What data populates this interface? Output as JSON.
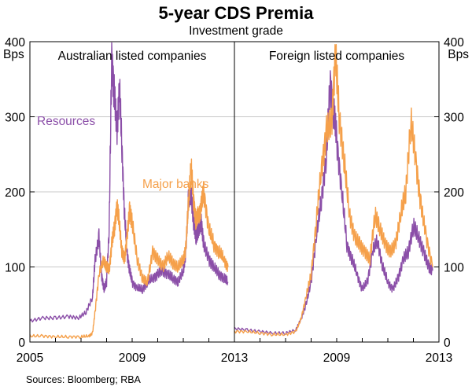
{
  "chart_data": {
    "type": "line",
    "title": "5-year CDS Premia",
    "subtitle": "Investment grade",
    "ylabel_left": "Bps",
    "ylabel_right": "Bps",
    "ylim": [
      0,
      400
    ],
    "yticks": [
      0,
      100,
      200,
      300,
      400
    ],
    "source": "Sources: Bloomberg; RBA",
    "colors": {
      "resources": "#8b4fa8",
      "major_banks": "#f5a04a",
      "grid": "#c8c8c8",
      "axis": "#000000"
    },
    "panels": [
      {
        "title": "Australian listed companies",
        "xlim": [
          2005,
          2013
        ],
        "xticks": [
          2005,
          2009,
          2013
        ],
        "series": [
          {
            "name": "Resources",
            "color": "#8b4fa8",
            "x": [
              2005.0,
              2005.5,
              2006.0,
              2006.5,
              2006.9,
              2007.2,
              2007.45,
              2007.55,
              2007.7,
              2007.8,
              2007.9,
              2008.0,
              2008.1,
              2008.2,
              2008.3,
              2008.4,
              2008.5,
              2008.6,
              2008.7,
              2008.8,
              2008.9,
              2009.0,
              2009.2,
              2009.4,
              2009.6,
              2009.8,
              2010.0,
              2010.2,
              2010.4,
              2010.6,
              2010.8,
              2011.0,
              2011.1,
              2011.2,
              2011.3,
              2011.4,
              2011.5,
              2011.6,
              2011.7,
              2011.8,
              2012.0,
              2012.2,
              2012.4,
              2012.6,
              2012.75
            ],
            "y": [
              28,
              32,
              32,
              34,
              32,
              40,
              60,
              110,
              140,
              90,
              70,
              80,
              150,
              380,
              330,
              280,
              340,
              260,
              170,
              120,
              95,
              80,
              72,
              70,
              80,
              85,
              90,
              95,
              90,
              85,
              80,
              95,
              120,
              190,
              200,
              160,
              140,
              150,
              160,
              130,
              110,
              100,
              90,
              85,
              80
            ]
          },
          {
            "name": "Major banks",
            "color": "#f5a04a",
            "x": [
              2005.0,
              2005.5,
              2006.0,
              2006.5,
              2007.0,
              2007.3,
              2007.45,
              2007.55,
              2007.7,
              2007.9,
              2008.0,
              2008.1,
              2008.2,
              2008.3,
              2008.4,
              2008.5,
              2008.6,
              2008.7,
              2008.8,
              2008.9,
              2009.0,
              2009.2,
              2009.4,
              2009.6,
              2009.8,
              2010.0,
              2010.2,
              2010.4,
              2010.6,
              2010.8,
              2011.0,
              2011.1,
              2011.2,
              2011.3,
              2011.4,
              2011.5,
              2011.6,
              2011.7,
              2011.8,
              2012.0,
              2012.2,
              2012.4,
              2012.6,
              2012.75
            ],
            "y": [
              8,
              8,
              7,
              7,
              7,
              8,
              12,
              40,
              90,
              110,
              100,
              95,
              130,
              150,
              180,
              160,
              120,
              110,
              140,
              175,
              160,
              110,
              85,
              80,
              120,
              110,
              100,
              115,
              105,
              100,
              110,
              125,
              185,
              235,
              190,
              160,
              170,
              180,
              200,
              150,
              130,
              120,
              110,
              100
            ]
          }
        ],
        "annotations": [
          "Resources",
          "Major banks"
        ]
      },
      {
        "title": "Foreign listed companies",
        "xlim": [
          2005,
          2013
        ],
        "xticks": [
          2009,
          2013
        ],
        "series": [
          {
            "name": "Resources",
            "color": "#8b4fa8",
            "x": [
              2005.0,
              2005.5,
              2006.0,
              2006.5,
              2007.0,
              2007.4,
              2007.6,
              2007.8,
              2008.0,
              2008.2,
              2008.4,
              2008.6,
              2008.75,
              2008.9,
              2009.0,
              2009.2,
              2009.4,
              2009.6,
              2009.8,
              2010.0,
              2010.2,
              2010.4,
              2010.6,
              2010.8,
              2011.0,
              2011.2,
              2011.4,
              2011.6,
              2011.8,
              2012.0,
              2012.2,
              2012.4,
              2012.6,
              2012.75
            ],
            "y": [
              18,
              16,
              14,
              12,
              12,
              16,
              30,
              50,
              80,
              140,
              190,
              250,
              345,
              300,
              270,
              200,
              130,
              110,
              90,
              70,
              80,
              120,
              135,
              100,
              80,
              70,
              85,
              110,
              120,
              155,
              140,
              120,
              100,
              95
            ]
          },
          {
            "name": "Major banks",
            "color": "#f5a04a",
            "x": [
              2005.0,
              2005.5,
              2006.0,
              2006.5,
              2007.0,
              2007.4,
              2007.6,
              2007.8,
              2008.0,
              2008.2,
              2008.4,
              2008.6,
              2008.8,
              2008.95,
              2009.1,
              2009.3,
              2009.5,
              2009.7,
              2009.9,
              2010.1,
              2010.3,
              2010.5,
              2010.7,
              2010.9,
              2011.1,
              2011.3,
              2011.5,
              2011.7,
              2011.9,
              2012.1,
              2012.3,
              2012.5,
              2012.75
            ],
            "y": [
              14,
              14,
              12,
              10,
              10,
              14,
              30,
              60,
              90,
              160,
              230,
              280,
              290,
              385,
              300,
              240,
              170,
              140,
              130,
              120,
              110,
              170,
              150,
              130,
              120,
              130,
              170,
              200,
              295,
              240,
              180,
              140,
              100
            ]
          }
        ],
        "annotations": []
      }
    ]
  }
}
